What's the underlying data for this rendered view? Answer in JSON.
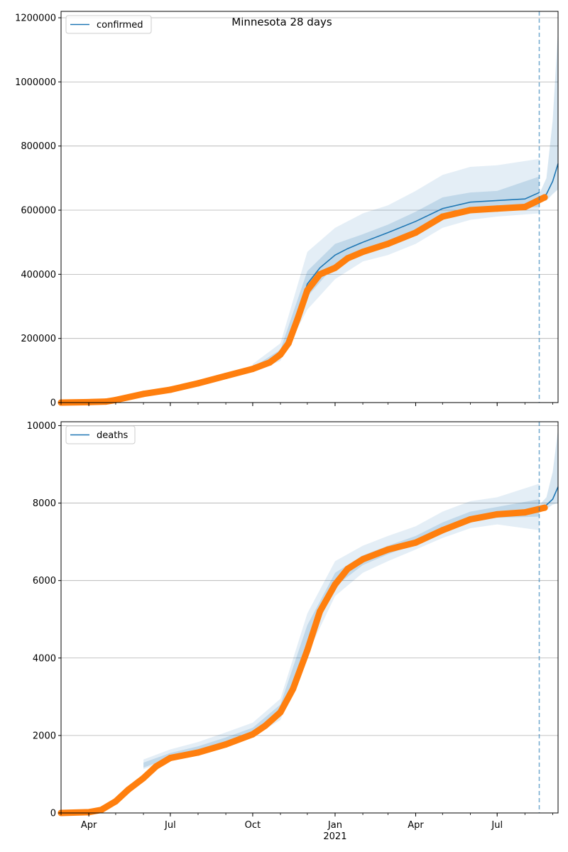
{
  "figure": {
    "title": "Minnesota 28 days"
  },
  "chart_data": [
    {
      "type": "line",
      "legend": {
        "label": "confirmed",
        "placement": "top-left"
      },
      "x_domain": [
        "2020-03-01",
        "2021-09-07"
      ],
      "ylim": [
        0,
        1220000
      ],
      "yticks": [
        0,
        200000,
        400000,
        600000,
        800000,
        1000000,
        1200000
      ],
      "ytick_labels": [
        "0",
        "200000",
        "400000",
        "600000",
        "800000",
        "1000000",
        "1200000"
      ],
      "grid": "horizontal",
      "forecast_start": "2021-08-17",
      "fit_line": {
        "x": [
          "2020-03-01",
          "2020-04-01",
          "2020-05-01",
          "2020-06-01",
          "2020-07-01",
          "2020-08-01",
          "2020-09-01",
          "2020-10-01",
          "2020-10-20",
          "2020-11-01",
          "2020-11-10",
          "2020-11-20",
          "2020-12-01",
          "2020-12-15",
          "2021-01-01",
          "2021-01-15",
          "2021-02-01",
          "2021-03-01",
          "2021-04-01",
          "2021-05-01",
          "2021-06-01",
          "2021-07-01",
          "2021-08-01",
          "2021-08-17"
        ],
        "y": [
          0,
          2000,
          10000,
          25000,
          40000,
          60000,
          80000,
          105000,
          125000,
          150000,
          190000,
          270000,
          370000,
          420000,
          460000,
          480000,
          500000,
          530000,
          565000,
          605000,
          625000,
          630000,
          635000,
          655000
        ]
      },
      "band_inner": {
        "x": [
          "2020-10-01",
          "2020-11-01",
          "2020-12-01",
          "2021-01-01",
          "2021-02-01",
          "2021-03-01",
          "2021-04-01",
          "2021-05-01",
          "2021-06-01",
          "2021-07-01",
          "2021-08-17"
        ],
        "lower": [
          100000,
          140000,
          330000,
          430000,
          475000,
          500000,
          535000,
          580000,
          600000,
          605000,
          610000
        ],
        "upper": [
          110000,
          165000,
          410000,
          495000,
          525000,
          555000,
          595000,
          640000,
          655000,
          660000,
          705000
        ]
      },
      "band_outer": {
        "x": [
          "2020-10-01",
          "2020-11-01",
          "2020-12-01",
          "2021-01-01",
          "2021-02-01",
          "2021-03-01",
          "2021-04-01",
          "2021-05-01",
          "2021-06-01",
          "2021-07-01",
          "2021-08-17"
        ],
        "lower": [
          95000,
          130000,
          290000,
          385000,
          440000,
          460000,
          495000,
          545000,
          570000,
          580000,
          590000
        ],
        "upper": [
          120000,
          185000,
          470000,
          545000,
          590000,
          615000,
          660000,
          710000,
          735000,
          740000,
          760000
        ]
      },
      "forecast_line": {
        "x": [
          "2021-08-17",
          "2021-08-25",
          "2021-09-01",
          "2021-09-07"
        ],
        "y": [
          635000,
          650000,
          690000,
          745000
        ]
      },
      "forecast_band": {
        "x": [
          "2021-08-17",
          "2021-08-25",
          "2021-09-01",
          "2021-09-07"
        ],
        "lower": [
          625000,
          630000,
          650000,
          665000
        ],
        "upper": [
          650000,
          700000,
          880000,
          1160000
        ]
      },
      "observed": {
        "x": [
          "2020-03-01",
          "2020-04-01",
          "2020-04-20",
          "2020-05-01",
          "2020-06-01",
          "2020-07-01",
          "2020-08-01",
          "2020-09-01",
          "2020-10-01",
          "2020-10-20",
          "2020-11-01",
          "2020-11-10",
          "2020-11-20",
          "2020-12-01",
          "2020-12-15",
          "2021-01-01",
          "2021-01-15",
          "2021-02-01",
          "2021-03-01",
          "2021-04-01",
          "2021-05-01",
          "2021-06-01",
          "2021-07-01",
          "2021-08-01",
          "2021-08-23"
        ],
        "y": [
          0,
          1500,
          3000,
          8000,
          27000,
          40000,
          60000,
          83000,
          105000,
          125000,
          150000,
          185000,
          260000,
          350000,
          400000,
          420000,
          450000,
          470000,
          495000,
          530000,
          580000,
          600000,
          605000,
          610000,
          640000
        ]
      }
    },
    {
      "type": "line",
      "legend": {
        "label": "deaths",
        "placement": "top-left"
      },
      "x_domain": [
        "2020-03-01",
        "2021-09-07"
      ],
      "xticks": [
        "2020-04-01",
        "2020-07-01",
        "2020-10-01",
        "2021-01-01",
        "2021-04-01",
        "2021-07-01"
      ],
      "xtick_labels": [
        "Apr",
        "Jul",
        "Oct",
        "Jan",
        "Apr",
        "Jul"
      ],
      "year_label": "2021",
      "ylim": [
        0,
        10100
      ],
      "yticks": [
        0,
        2000,
        4000,
        6000,
        8000,
        10000
      ],
      "ytick_labels": [
        "0",
        "2000",
        "4000",
        "6000",
        "8000",
        "10000"
      ],
      "grid": "horizontal",
      "forecast_start": "2021-08-17",
      "band_inner": {
        "x": [
          "2020-06-01",
          "2020-07-01",
          "2020-08-01",
          "2020-09-01",
          "2020-10-01",
          "2020-11-01",
          "2020-12-01",
          "2021-01-01",
          "2021-02-01",
          "2021-03-01",
          "2021-04-01",
          "2021-05-01",
          "2021-06-01",
          "2021-07-01",
          "2021-08-17"
        ],
        "lower": [
          1170,
          1430,
          1600,
          1780,
          2030,
          2500,
          4300,
          5850,
          6400,
          6680,
          6950,
          7250,
          7500,
          7620,
          7650
        ],
        "upper": [
          1300,
          1550,
          1720,
          1950,
          2200,
          2800,
          4850,
          6200,
          6650,
          6900,
          7150,
          7500,
          7780,
          7900,
          8100
        ]
      },
      "band_outer": {
        "x": [
          "2020-06-01",
          "2020-07-01",
          "2020-08-01",
          "2020-09-01",
          "2020-10-01",
          "2020-11-01",
          "2020-12-01",
          "2021-01-01",
          "2021-02-01",
          "2021-03-01",
          "2021-04-01",
          "2021-05-01",
          "2021-06-01",
          "2021-07-01",
          "2021-08-17"
        ],
        "lower": [
          1130,
          1380,
          1530,
          1710,
          1970,
          2400,
          4100,
          5600,
          6200,
          6500,
          6800,
          7100,
          7350,
          7450,
          7300
        ],
        "upper": [
          1380,
          1640,
          1830,
          2080,
          2330,
          2950,
          5150,
          6500,
          6900,
          7150,
          7400,
          7780,
          8050,
          8150,
          8500
        ]
      },
      "forecast_line": {
        "x": [
          "2021-08-17",
          "2021-08-25",
          "2021-09-01",
          "2021-09-07"
        ],
        "y": [
          7870,
          7950,
          8100,
          8420
        ]
      },
      "forecast_band": {
        "x": [
          "2021-08-17",
          "2021-08-25",
          "2021-09-01",
          "2021-09-07"
        ],
        "lower": [
          7800,
          7850,
          7960,
          8000
        ],
        "upper": [
          7950,
          8150,
          8800,
          9900
        ]
      },
      "observed": {
        "x": [
          "2020-03-01",
          "2020-04-01",
          "2020-04-15",
          "2020-05-01",
          "2020-05-15",
          "2020-06-01",
          "2020-06-15",
          "2020-07-01",
          "2020-08-01",
          "2020-09-01",
          "2020-10-01",
          "2020-10-15",
          "2020-11-01",
          "2020-11-15",
          "2020-12-01",
          "2020-12-15",
          "2021-01-01",
          "2021-01-15",
          "2021-02-01",
          "2021-03-01",
          "2021-04-01",
          "2021-05-01",
          "2021-06-01",
          "2021-07-01",
          "2021-08-01",
          "2021-08-23"
        ],
        "y": [
          0,
          20,
          80,
          300,
          600,
          900,
          1200,
          1420,
          1560,
          1770,
          2030,
          2250,
          2600,
          3200,
          4200,
          5200,
          5900,
          6300,
          6550,
          6800,
          6980,
          7300,
          7580,
          7710,
          7760,
          7880
        ]
      }
    }
  ]
}
